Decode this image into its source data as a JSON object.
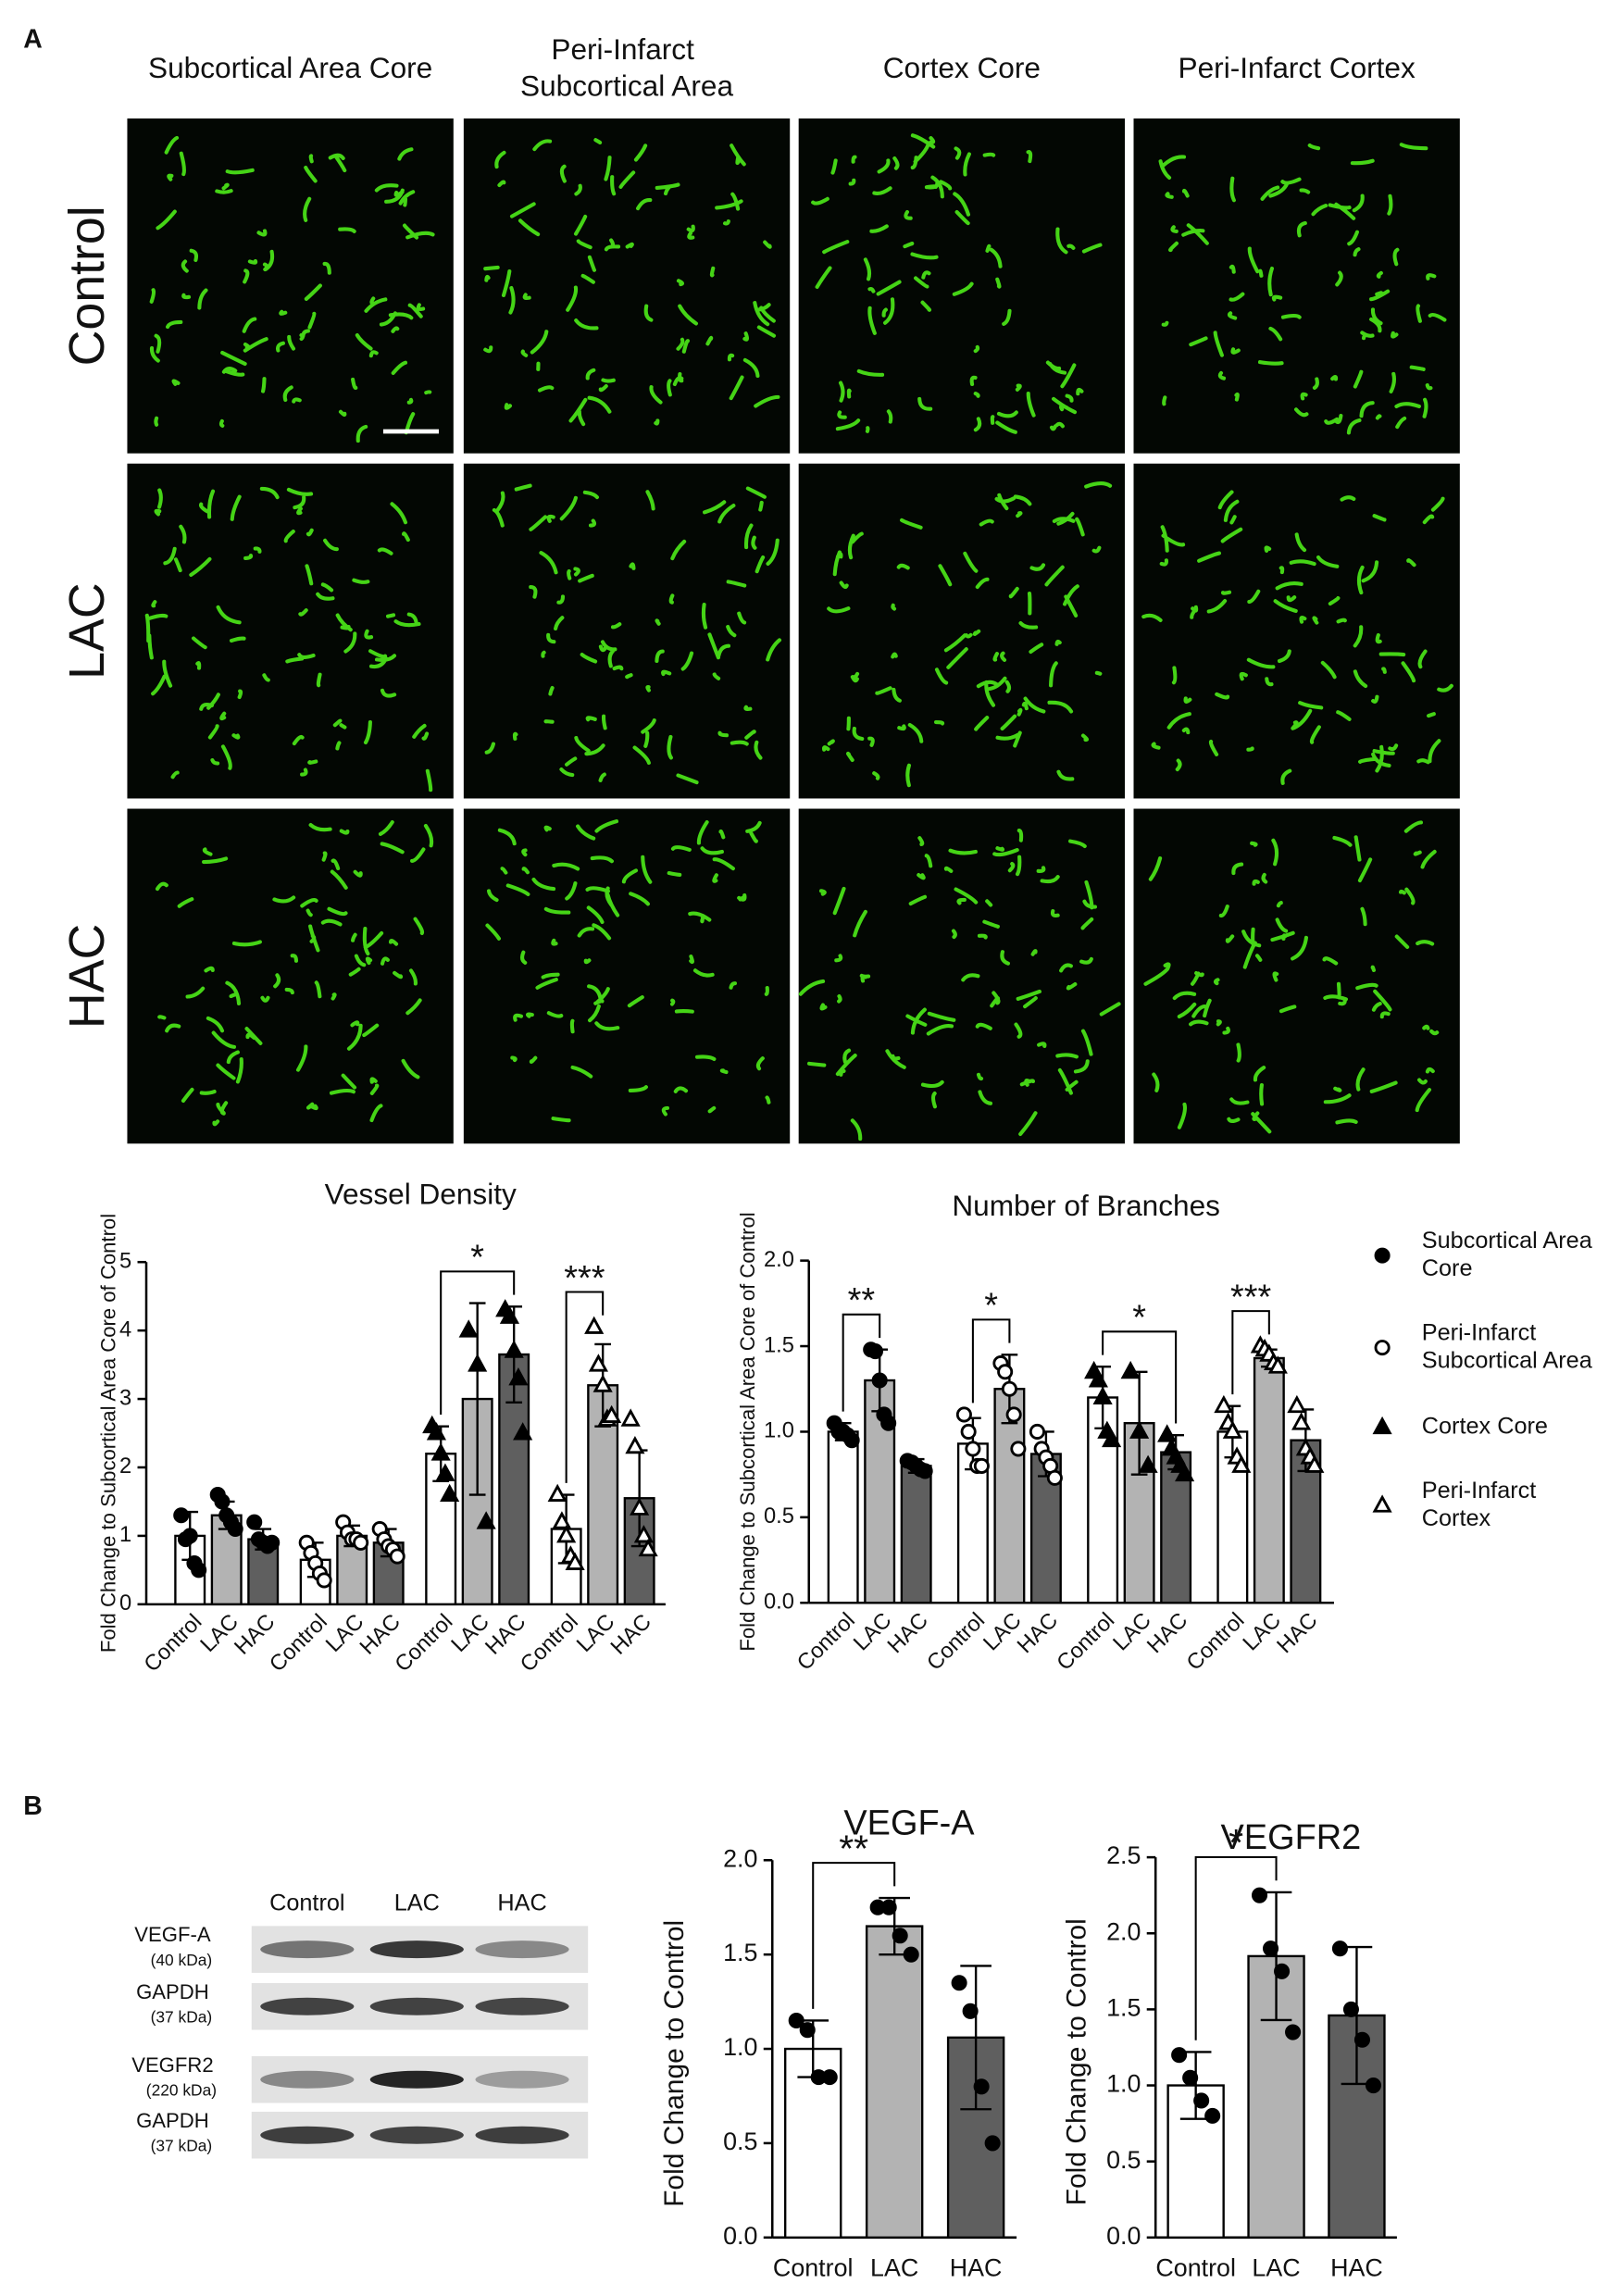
{
  "panels": [
    "A",
    "B"
  ],
  "micrographs": {
    "columns": [
      "Subcortical Area Core",
      "Peri-Infarct Subcortical Area",
      "Cortex Core",
      "Peri-Infarct Cortex"
    ],
    "rows": [
      "Control",
      "LAC",
      "HAC"
    ]
  },
  "blot": {
    "lanes": [
      "Control",
      "LAC",
      "HAC"
    ],
    "bands": [
      {
        "name": "VEGF-A",
        "size": "(40 kDa)"
      },
      {
        "name": "GAPDH",
        "size": "(37 kDa)"
      },
      {
        "name": "VEGFR2",
        "size": "(220 kDa)"
      },
      {
        "name": "GAPDH",
        "size": "(37 kDa)"
      }
    ]
  },
  "chart_data": [
    {
      "type": "bar",
      "title": "Vessel Density",
      "ylabel": "Fold Change to Subcortical Area Core of Control",
      "categories": [
        "Subcortical Area Core",
        "Peri-Infarct Subcortical Area",
        "Cortex Core",
        "Peri-Infarct Cortex"
      ],
      "markers": [
        "circle-filled",
        "circle-open",
        "triangle-filled",
        "triangle-open"
      ],
      "series": [
        {
          "name": "Control",
          "color": "#ffffff",
          "values": [
            1.0,
            0.65,
            2.2,
            1.1
          ],
          "errors": [
            0.35,
            0.25,
            0.4,
            0.5
          ],
          "points": [
            [
              1.3,
              0.95,
              1.0,
              0.6,
              0.5
            ],
            [
              0.9,
              0.75,
              0.6,
              0.45,
              0.35
            ],
            [
              2.6,
              2.5,
              2.2,
              1.9,
              1.6
            ],
            [
              1.6,
              1.2,
              1.0,
              0.7,
              0.6
            ]
          ]
        },
        {
          "name": "LAC",
          "color": "#b3b3b3",
          "values": [
            1.3,
            1.0,
            3.0,
            3.2
          ],
          "errors": [
            0.2,
            0.15,
            1.4,
            0.6
          ],
          "points": [
            [
              1.6,
              1.5,
              1.3,
              1.2,
              1.1
            ],
            [
              1.2,
              1.05,
              0.95,
              0.95,
              0.9
            ],
            [
              4.0,
              3.5,
              1.2
            ],
            [
              4.05,
              3.5,
              3.2,
              2.7,
              2.75
            ]
          ]
        },
        {
          "name": "HAC",
          "color": "#5f5f5f",
          "values": [
            0.95,
            0.9,
            3.65,
            1.55
          ],
          "errors": [
            0.15,
            0.2,
            0.7,
            0.7
          ],
          "points": [
            [
              1.2,
              0.95,
              0.9,
              0.85,
              0.9
            ],
            [
              1.1,
              0.95,
              0.85,
              0.8,
              0.7
            ],
            [
              4.3,
              4.2,
              3.7,
              3.3,
              2.5
            ],
            [
              2.7,
              2.3,
              1.4,
              1.0,
              0.8
            ]
          ]
        }
      ],
      "ylim": [
        0,
        5
      ],
      "yticks": [
        0,
        1,
        2,
        3,
        4,
        5
      ],
      "significance": [
        {
          "label": "*",
          "category": "Cortex Core",
          "between": [
            "Control",
            "HAC"
          ]
        },
        {
          "label": "***",
          "category": "Peri-Infarct Cortex",
          "between": [
            "Control",
            "LAC"
          ]
        }
      ]
    },
    {
      "type": "bar",
      "title": "Number of Branches",
      "ylabel": "Fold Change to Subcortical Area Core of Control",
      "categories": [
        "Subcortical Area Core",
        "Peri-Infarct Subcortical Area",
        "Cortex Core",
        "Peri-Infarct Cortex"
      ],
      "markers": [
        "circle-filled",
        "circle-open",
        "triangle-filled",
        "triangle-open"
      ],
      "series": [
        {
          "name": "Control",
          "color": "#ffffff",
          "values": [
            1.0,
            0.93,
            1.2,
            1.0
          ],
          "errors": [
            0.05,
            0.15,
            0.18,
            0.15
          ],
          "points": [
            [
              1.05,
              1.0,
              1.0,
              0.98,
              0.95
            ],
            [
              1.1,
              1.0,
              0.9,
              0.8,
              0.8
            ],
            [
              1.35,
              1.3,
              1.2,
              1.0,
              0.95
            ],
            [
              1.15,
              1.05,
              1.0,
              0.85,
              0.8
            ]
          ]
        },
        {
          "name": "LAC",
          "color": "#b3b3b3",
          "values": [
            1.3,
            1.25,
            1.05,
            1.43
          ],
          "errors": [
            0.18,
            0.2,
            0.3,
            0.05
          ],
          "points": [
            [
              1.48,
              1.47,
              1.3,
              1.1,
              1.05
            ],
            [
              1.4,
              1.35,
              1.25,
              1.1,
              0.9
            ],
            [
              1.35,
              1.0,
              0.8
            ],
            [
              1.5,
              1.48,
              1.45,
              1.4,
              1.38
            ]
          ]
        },
        {
          "name": "HAC",
          "color": "#5f5f5f",
          "values": [
            0.8,
            0.87,
            0.88,
            0.95
          ],
          "errors": [
            0.04,
            0.13,
            0.1,
            0.18
          ],
          "points": [
            [
              0.83,
              0.82,
              0.8,
              0.78,
              0.77
            ],
            [
              1.0,
              0.9,
              0.85,
              0.8,
              0.73
            ],
            [
              0.98,
              0.9,
              0.85,
              0.8,
              0.75
            ],
            [
              1.15,
              1.05,
              0.9,
              0.85,
              0.8
            ]
          ]
        }
      ],
      "ylim": [
        0,
        2
      ],
      "yticks": [
        {
          "value": 0,
          "label": "0.0"
        },
        0.5,
        {
          "value": 1,
          "label": "1.0"
        },
        1.5,
        {
          "value": 2,
          "label": "2.0"
        }
      ],
      "legend": "right",
      "significance": [
        {
          "label": "**",
          "category": "Subcortical Area Core",
          "between": [
            "Control",
            "LAC"
          ]
        },
        {
          "label": "*",
          "category": "Peri-Infarct Subcortical Area",
          "between": [
            "Control",
            "LAC"
          ]
        },
        {
          "label": "*",
          "category": "Cortex Core",
          "between": [
            "Control",
            "HAC"
          ]
        },
        {
          "label": "***",
          "category": "Peri-Infarct Cortex",
          "between": [
            "Control",
            "LAC"
          ]
        }
      ]
    },
    {
      "type": "bar",
      "title": "VEGF-A",
      "ylabel": "Fold Change to Control",
      "categories": [
        "Control",
        "LAC",
        "HAC"
      ],
      "values": [
        1.0,
        1.65,
        1.06
      ],
      "errors": [
        0.15,
        0.15,
        0.38
      ],
      "points": [
        [
          1.15,
          1.1,
          0.85,
          0.85
        ],
        [
          1.75,
          1.75,
          1.6,
          1.5
        ],
        [
          1.35,
          1.2,
          0.8,
          0.5
        ]
      ],
      "colors": [
        "#ffffff",
        "#b3b3b3",
        "#5f5f5f"
      ],
      "marker": "circle-filled",
      "ylim": [
        0,
        2
      ],
      "yticks": [
        {
          "value": 0,
          "label": "0.0"
        },
        0.5,
        {
          "value": 1,
          "label": "1.0"
        },
        1.5,
        {
          "value": 2,
          "label": "2.0"
        }
      ],
      "significance": [
        {
          "label": "**",
          "between": [
            "Control",
            "LAC"
          ]
        }
      ]
    },
    {
      "type": "bar",
      "title": "VEGFR2",
      "ylabel": "Fold Change to Control",
      "categories": [
        "Control",
        "LAC",
        "HAC"
      ],
      "values": [
        1.0,
        1.85,
        1.46
      ],
      "errors": [
        0.22,
        0.42,
        0.45
      ],
      "points": [
        [
          1.2,
          1.05,
          0.9,
          0.8
        ],
        [
          2.25,
          1.9,
          1.75,
          1.35
        ],
        [
          1.9,
          1.5,
          1.3,
          1.0
        ]
      ],
      "colors": [
        "#ffffff",
        "#b3b3b3",
        "#5f5f5f"
      ],
      "marker": "circle-filled",
      "ylim": [
        0,
        2.5
      ],
      "yticks": [
        {
          "value": 0,
          "label": "0.0"
        },
        0.5,
        {
          "value": 1,
          "label": "1.0"
        },
        1.5,
        {
          "value": 2,
          "label": "2.0"
        },
        2.5
      ],
      "significance": [
        {
          "label": "*",
          "between": [
            "Control",
            "LAC"
          ]
        }
      ]
    }
  ]
}
